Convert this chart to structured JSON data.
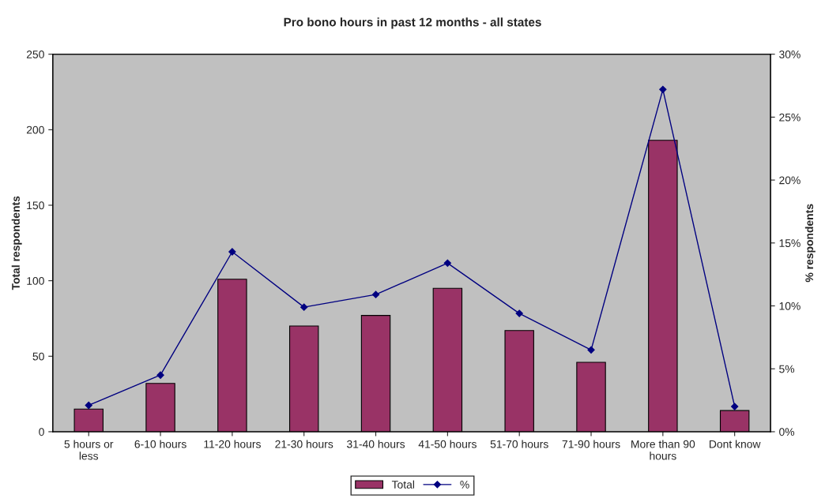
{
  "chart_data": {
    "type": "bar",
    "title": "Pro bono hours in past 12 months - all states",
    "ylabel": "Total respondents",
    "y2label": "% respondents",
    "categories": [
      "5 hours or\nless",
      "6-10 hours",
      "11-20 hours",
      "21-30 hours",
      "31-40 hours",
      "41-50 hours",
      "51-70 hours",
      "71-90 hours",
      "More than 90\nhours",
      "Dont know"
    ],
    "series": [
      {
        "name": "Total",
        "color": "#993366",
        "values": [
          15,
          32,
          101,
          70,
          77,
          95,
          67,
          46,
          193,
          14
        ]
      },
      {
        "name": "%",
        "type": "line",
        "axis": "y2",
        "color": "#000080",
        "marker": "diamond",
        "values": [
          2.1,
          4.5,
          14.3,
          9.9,
          10.9,
          13.4,
          9.4,
          6.5,
          27.2,
          2.0
        ]
      }
    ],
    "ylim": [
      0,
      250
    ],
    "yticks": [
      0,
      50,
      100,
      150,
      200,
      250
    ],
    "y2lim": [
      0,
      30
    ],
    "y2ticks": [
      {
        "value": 0,
        "label": "0%"
      },
      {
        "value": 5,
        "label": "5%"
      },
      {
        "value": 10,
        "label": "10%"
      },
      {
        "value": 15,
        "label": "15%"
      },
      {
        "value": 20,
        "label": "20%"
      },
      {
        "value": 25,
        "label": "25%"
      },
      {
        "value": 30,
        "label": "30%"
      }
    ],
    "grid": false,
    "legend": "bottom"
  }
}
